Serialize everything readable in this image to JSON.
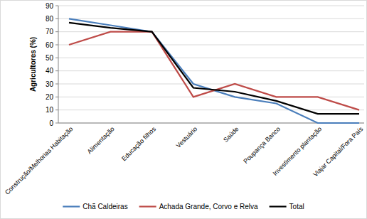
{
  "chart_data": {
    "type": "line",
    "y_label": "Agricultores (%)",
    "categories": [
      "Construção/Melhorias Habitação",
      "Alimentação",
      "Educação filhos",
      "Vestuário",
      "Saúde",
      "Poupança Banco",
      "Investimento plantação",
      "Viajar Capital/Fora País"
    ],
    "series": [
      {
        "name": "Chã Caldeiras",
        "color": "#4a7ebb",
        "values": [
          80,
          75,
          70,
          30,
          20,
          15,
          0,
          0
        ]
      },
      {
        "name": "Achada Grande, Corvo e Relva",
        "color": "#be4b48",
        "values": [
          60,
          70,
          70,
          20,
          30,
          20,
          20,
          10
        ]
      },
      {
        "name": "Total",
        "color": "#000000",
        "values": [
          77,
          73,
          70,
          27,
          24,
          17,
          7,
          7
        ]
      }
    ],
    "ylim": [
      0,
      90
    ],
    "yticks": [
      0,
      10,
      20,
      30,
      40,
      50,
      60,
      70,
      80,
      90
    ],
    "grid": true,
    "legend": "bottom"
  }
}
